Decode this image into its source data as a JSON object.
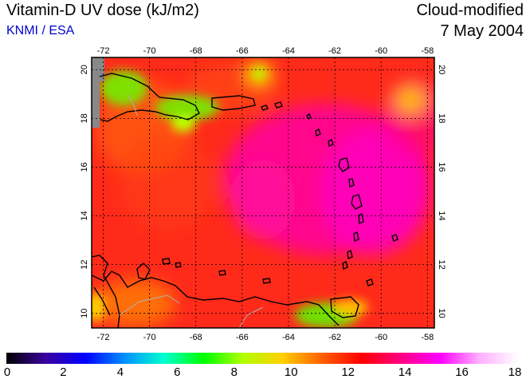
{
  "header": {
    "title": "Vitamin-D UV dose (kJ/m2)",
    "source": "KNMI / ESA",
    "mode": "Cloud-modified",
    "date": "7 May 2004"
  },
  "map": {
    "lon_range": [
      -72.5,
      -57.7
    ],
    "lat_range": [
      9.4,
      20.5
    ],
    "lon_ticks": [
      -72,
      -70,
      -68,
      -66,
      -64,
      -62,
      -60,
      -58
    ],
    "lat_ticks": [
      10,
      12,
      14,
      16,
      18,
      20
    ],
    "lon_tick_labels": [
      "-72",
      "-70",
      "-68",
      "-66",
      "-64",
      "-62",
      "-60",
      "-58"
    ],
    "lat_tick_labels": [
      "10",
      "12",
      "14",
      "16",
      "18",
      "20"
    ],
    "gridlines": "dotted",
    "colors": {
      "ocean_base": "#ff2a1a",
      "high_dose": "#ff00a8",
      "low_dose_green": "#66e000",
      "yellow": "#ffd000",
      "no_data": "#888888",
      "coastline": "#000000"
    }
  },
  "colorbar": {
    "min": 0,
    "max": 18,
    "ticks": [
      0,
      2,
      4,
      6,
      8,
      10,
      12,
      14,
      16,
      18
    ],
    "tick_labels": [
      "0",
      "2",
      "4",
      "6",
      "8",
      "10",
      "12",
      "14",
      "16",
      "18"
    ],
    "stops": [
      "#000000",
      "#3a00a0",
      "#0000ff",
      "#0090ff",
      "#00ffd0",
      "#00ff00",
      "#b0ff00",
      "#ffd000",
      "#ff6000",
      "#ff0000",
      "#ff0080",
      "#ff00ff",
      "#ffb0ff",
      "#ffffff"
    ]
  }
}
